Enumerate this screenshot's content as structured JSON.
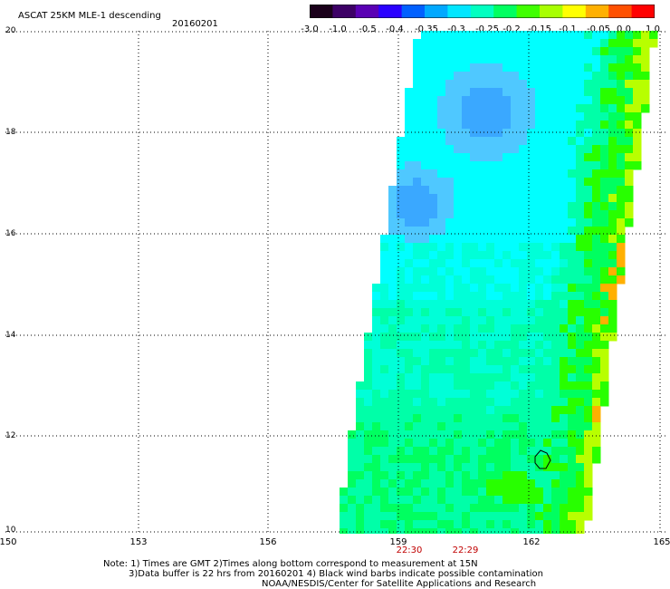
{
  "title": "ASCAT 25KM MLE-1 descending",
  "date": "20160201",
  "colorbar": {
    "labels": [
      "-3.0",
      "-1.0",
      "-0.5",
      "-0.4",
      "-0.35",
      "-0.3",
      "-0.25",
      "-0.2",
      "-0.15",
      "-0.1",
      "-0.05",
      "0.0",
      "1.0"
    ],
    "colors": [
      "#1a001a",
      "#3d0066",
      "#5a00b4",
      "#2a00ff",
      "#0060ff",
      "#00a8ff",
      "#00e6ff",
      "#00ffc0",
      "#00ff60",
      "#40ff00",
      "#a8ff00",
      "#ffff00",
      "#ffb000",
      "#ff5000",
      "#ff0000"
    ]
  },
  "lat_labels": [
    "20",
    "18",
    "16",
    "14",
    "12",
    "10"
  ],
  "lon_labels": [
    "150",
    "153",
    "156",
    "159",
    "162",
    "165"
  ],
  "time_labels": [
    "22:30",
    "22:29"
  ],
  "notes": {
    "line1": "Note: 1) Times are GMT 2)Times along bottom correspond to measurement at 15N",
    "line2": "3)Data buffer is 22 hrs from 20160201 4) Black wind barbs indicate possible contamination",
    "line3": "NOAA/NESDIS/Center for Satellite Applications and Research"
  },
  "swath": {
    "colors": {
      "blue": "#3aa8ff",
      "lightblue": "#4fc8ff",
      "cyan": "#00ffff",
      "aqua": "#00ffd8",
      "seafoam": "#00ffa8",
      "green": "#00ff60",
      "brightgreen": "#28ff00",
      "yellowgreen": "#b8ff00",
      "yellow": "#ffff00",
      "orange": "#ffb000"
    }
  }
}
